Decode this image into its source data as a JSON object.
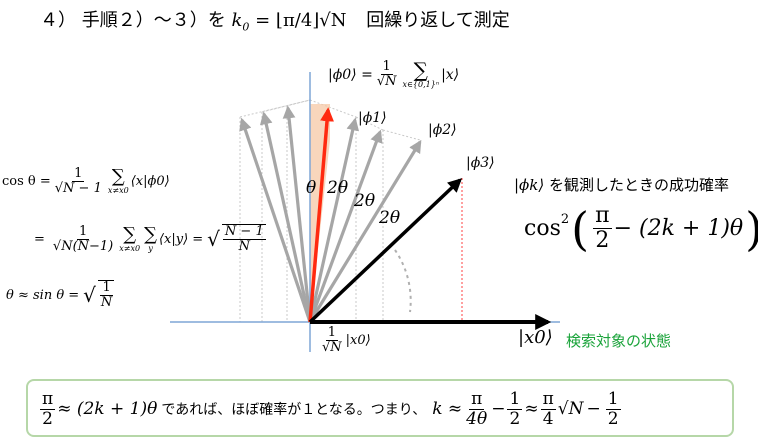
{
  "heading": {
    "prefix": "４） 手順２）～３）を",
    "k0": "k",
    "k0_sub": "0",
    "eq": " = ⌊π/4⌋√N",
    "suffix": "回繰り返して測定"
  },
  "phi0_def": {
    "lhs": "|ϕ0⟩ =",
    "frac_num": "1",
    "frac_den": "√N",
    "sum_sym": "∑",
    "sum_sub": "x∈{0,1}ⁿ",
    "term": "|x⟩"
  },
  "labels": {
    "phi1": "|ϕ1⟩",
    "phi2": "|ϕ2⟩",
    "phi3": "|ϕ3⟩",
    "theta": "θ",
    "two_theta_1": "2θ",
    "two_theta_2": "2θ",
    "two_theta_3": "2θ",
    "x0": "|x0⟩",
    "x0_caption": "検索対象の状態",
    "bottom_component_num": "1",
    "bottom_component_den": "√N",
    "bottom_component_ket": "|x0⟩"
  },
  "left_eqs": {
    "cos_lhs": "cos θ =",
    "cos_frac_num": "1",
    "cos_frac_den": "√N − 1",
    "cos_sum": "∑",
    "cos_sum_sub": "x≠x0",
    "cos_term": "⟨x|ϕ0⟩",
    "line2_lhs": "=",
    "line2_frac_num": "1",
    "line2_frac_den": "√N(N−1)",
    "line2_sum1": "∑",
    "line2_sum1_sub": "x≠x0",
    "line2_sum2": "∑",
    "line2_sum2_sub": "y",
    "line2_term": "⟨x|y⟩ =",
    "line2_rhs_num": "N − 1",
    "line2_rhs_den": "N",
    "approx_lhs": "θ ≈ sin θ =",
    "approx_num": "1",
    "approx_den": "N"
  },
  "success": {
    "label_ket": "|ϕk⟩",
    "label_text": "を観測したときの成功確率",
    "formula_cos": "cos",
    "formula_sup": "2",
    "formula_open": "(",
    "formula_frac_num": "π",
    "formula_frac_den": "2",
    "formula_rest": "− (2k + 1)θ",
    "formula_close": ")"
  },
  "bottom_box": {
    "frac_num": "π",
    "frac_den": "2",
    "approx": "≈ (2k + 1)θ",
    "text": "であれば、ほぼ確率が１となる。つまり、",
    "k_lhs": "k ≈",
    "f1_num": "π",
    "f1_den": "4θ",
    "minus1": "−",
    "f2_num": "1",
    "f2_den": "2",
    "approx2": "≈",
    "f3_num": "π",
    "f3_den": "4",
    "sqrtN": "√N",
    "minus2": "−",
    "f4_num": "1",
    "f4_den": "2"
  },
  "colors": {
    "axis": "#7fa6d6",
    "red_arrow": "#ff2a10",
    "gray_arrow": "#a6a6a6",
    "black_arrow": "#000000",
    "shade": "#f6c8a6",
    "green": "#1aa33a",
    "box_border": "#b6d7a8",
    "dotted_red": "#ff4040",
    "dotted_gray": "#c8c8c8"
  }
}
